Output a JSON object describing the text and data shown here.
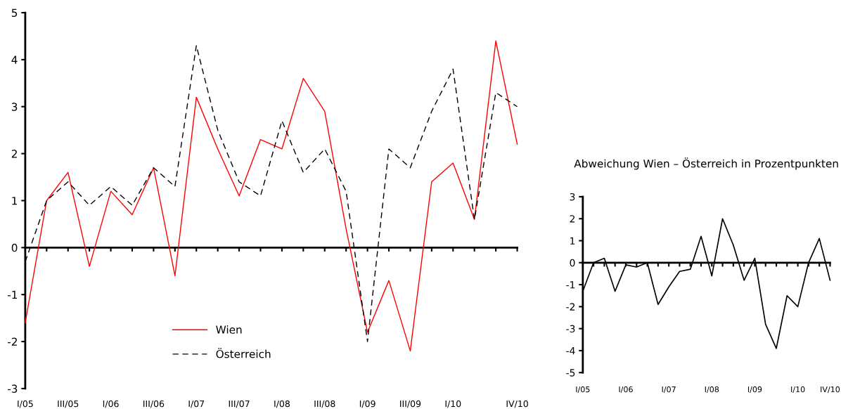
{
  "chart_data": [
    {
      "type": "line",
      "categories": [
        "I/05",
        null,
        "III/05",
        null,
        "I/06",
        null,
        "III/06",
        null,
        "I/07",
        null,
        "III/07",
        null,
        "I/08",
        null,
        "III/08",
        null,
        "I/09",
        null,
        "III/09",
        null,
        "I/10",
        null,
        null,
        "IV/10"
      ],
      "series": [
        {
          "name": "Wien",
          "color": "#ff0000",
          "line_style": "solid",
          "values": [
            -1.6,
            1.0,
            1.6,
            -0.4,
            1.2,
            0.7,
            1.7,
            -0.6,
            3.2,
            2.1,
            1.1,
            2.3,
            2.1,
            3.6,
            2.9,
            0.4,
            -1.8,
            -0.7,
            -2.2,
            1.4,
            1.8,
            0.6,
            4.4,
            2.2
          ]
        },
        {
          "name": "Österreich",
          "color": "#000000",
          "line_style": "dashed",
          "values": [
            -0.3,
            1.0,
            1.4,
            0.9,
            1.3,
            0.9,
            1.7,
            1.3,
            4.3,
            2.5,
            1.4,
            1.1,
            2.7,
            1.6,
            2.1,
            1.2,
            -2.0,
            2.1,
            1.7,
            2.9,
            3.8,
            0.6,
            3.3,
            3.0
          ]
        }
      ],
      "ylim": [
        -3,
        5
      ],
      "yticks": [
        -3,
        -2,
        -1,
        0,
        1,
        2,
        3,
        4,
        5
      ],
      "legend": "bottom left",
      "marker": "none"
    },
    {
      "type": "line",
      "title": "Abweichung Wien – Österreich in Prozentpunkten",
      "categories": [
        "I/05",
        null,
        null,
        null,
        "I/06",
        null,
        null,
        null,
        "I/07",
        null,
        null,
        null,
        "I/08",
        null,
        null,
        null,
        "I/09",
        null,
        null,
        null,
        "I/10",
        null,
        null,
        "IV/10"
      ],
      "series": [
        {
          "color": "#000000",
          "line_style": "solid",
          "values": [
            -1.3,
            0.0,
            0.2,
            -1.3,
            -0.1,
            -0.2,
            0.0,
            -1.9,
            -1.1,
            -0.4,
            -0.3,
            1.2,
            -0.6,
            2.0,
            0.8,
            -0.8,
            0.2,
            -2.8,
            -3.9,
            -1.5,
            -2.0,
            0.0,
            1.1,
            -0.8
          ]
        }
      ],
      "ylim": [
        -5,
        3
      ],
      "yticks": [
        -5,
        -4,
        -3,
        -2,
        -1,
        0,
        1,
        2,
        3
      ],
      "legend": false,
      "marker": "none"
    }
  ]
}
